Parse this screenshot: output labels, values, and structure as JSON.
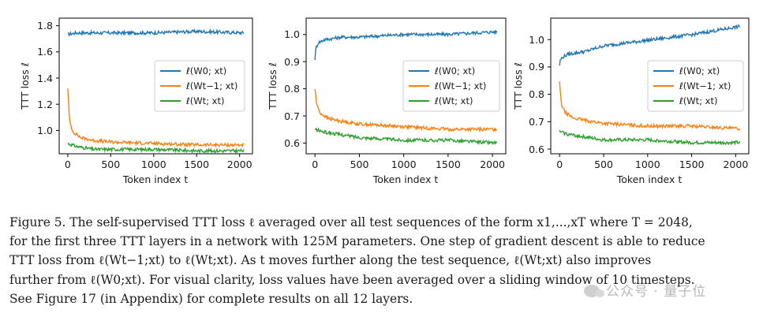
{
  "figure": {
    "subplots": [
      {
        "id": "layer1",
        "xlabel": "Token index t",
        "ylabel": "TTT loss ℓ",
        "yticks": [
          "1.0",
          "1.2",
          "1.4",
          "1.6",
          "1.8"
        ],
        "xticks": [
          "0",
          "500",
          "1000",
          "1500",
          "2000"
        ],
        "legend": [
          "ℓ(W0; xt)",
          "ℓ(Wt−1; xt)",
          "ℓ(Wt; xt)"
        ]
      },
      {
        "id": "layer2",
        "xlabel": "Token index t",
        "ylabel": "TTT loss ℓ",
        "yticks": [
          "0.6",
          "0.7",
          "0.8",
          "0.9",
          "1.0"
        ],
        "xticks": [
          "0",
          "500",
          "1000",
          "1500",
          "2000"
        ],
        "legend": [
          "ℓ(W0; xt)",
          "ℓ(Wt−1; xt)",
          "ℓ(Wt; xt)"
        ]
      },
      {
        "id": "layer3",
        "xlabel": "Token index t",
        "ylabel": "TTT loss ℓ",
        "yticks": [
          "0.6",
          "0.7",
          "0.8",
          "0.9",
          "1.0"
        ],
        "xticks": [
          "0",
          "500",
          "1000",
          "1500",
          "2000"
        ],
        "legend": [
          "ℓ(W0; xt)",
          "ℓ(Wt−1; xt)",
          "ℓ(Wt; xt)"
        ]
      }
    ]
  },
  "chart_data": [
    {
      "type": "line",
      "xlim": [
        -100,
        2150
      ],
      "ylim": [
        0.9,
        1.82
      ],
      "grid": false,
      "legend_position": "center-right",
      "xlabel": "Token index t",
      "ylabel": "TTT loss ℓ",
      "series": [
        {
          "name": "ℓ(W0; xt)",
          "color": "#1f77b4",
          "x": [
            0,
            100,
            500,
            1000,
            1500,
            2048
          ],
          "y": [
            1.71,
            1.72,
            1.72,
            1.72,
            1.73,
            1.72
          ]
        },
        {
          "name": "ℓ(Wt−1; xt)",
          "color": "#ff7f0e",
          "x": [
            0,
            20,
            60,
            150,
            300,
            500,
            1000,
            1500,
            2048
          ],
          "y": [
            1.35,
            1.12,
            1.05,
            1.01,
            0.99,
            0.98,
            0.97,
            0.96,
            0.96
          ]
        },
        {
          "name": "ℓ(Wt; xt)",
          "color": "#2ca02c",
          "x": [
            0,
            100,
            300,
            500,
            1000,
            1500,
            2048
          ],
          "y": [
            0.97,
            0.95,
            0.93,
            0.93,
            0.93,
            0.92,
            0.92
          ]
        }
      ]
    },
    {
      "type": "line",
      "xlim": [
        -100,
        2150
      ],
      "ylim": [
        0.56,
        1.06
      ],
      "grid": false,
      "legend_position": "center-right",
      "xlabel": "Token index t",
      "ylabel": "TTT loss ℓ",
      "series": [
        {
          "name": "ℓ(W0; xt)",
          "color": "#1f77b4",
          "x": [
            0,
            10,
            40,
            100,
            300,
            500,
            1000,
            1500,
            2048
          ],
          "y": [
            0.91,
            0.95,
            0.97,
            0.98,
            0.99,
            0.99,
            1.0,
            1.0,
            1.01
          ]
        },
        {
          "name": "ℓ(Wt−1; xt)",
          "color": "#ff7f0e",
          "x": [
            0,
            20,
            60,
            150,
            300,
            500,
            1000,
            1500,
            2048
          ],
          "y": [
            0.8,
            0.74,
            0.71,
            0.69,
            0.68,
            0.67,
            0.66,
            0.65,
            0.65
          ]
        },
        {
          "name": "ℓ(Wt; xt)",
          "color": "#2ca02c",
          "x": [
            0,
            100,
            300,
            500,
            1000,
            1500,
            2048
          ],
          "y": [
            0.65,
            0.64,
            0.63,
            0.62,
            0.61,
            0.61,
            0.6
          ]
        }
      ]
    },
    {
      "type": "line",
      "xlim": [
        -100,
        2150
      ],
      "ylim": [
        0.58,
        1.07
      ],
      "grid": false,
      "legend_position": "center-right",
      "xlabel": "Token index t",
      "ylabel": "TTT loss ℓ",
      "series": [
        {
          "name": "ℓ(W0; xt)",
          "color": "#1f77b4",
          "x": [
            0,
            10,
            40,
            100,
            300,
            500,
            1000,
            1500,
            2048
          ],
          "y": [
            0.9,
            0.92,
            0.93,
            0.94,
            0.95,
            0.97,
            0.99,
            1.01,
            1.04
          ]
        },
        {
          "name": "ℓ(Wt−1; xt)",
          "color": "#ff7f0e",
          "x": [
            0,
            20,
            60,
            150,
            300,
            500,
            1000,
            1500,
            2048
          ],
          "y": [
            0.84,
            0.76,
            0.73,
            0.71,
            0.7,
            0.69,
            0.68,
            0.68,
            0.67
          ]
        },
        {
          "name": "ℓ(Wt; xt)",
          "color": "#2ca02c",
          "x": [
            0,
            100,
            300,
            500,
            1000,
            1500,
            2048
          ],
          "y": [
            0.66,
            0.65,
            0.64,
            0.63,
            0.63,
            0.62,
            0.62
          ]
        }
      ]
    }
  ],
  "caption": {
    "lines": [
      "Figure 5. The self-supervised TTT loss ℓ averaged over all test sequences of the form x1,...,xT where T = 2048,",
      "for the first three TTT layers in a network with 125M parameters. One step of gradient descent is able to reduce",
      "TTT loss from ℓ(Wt−1;xt) to ℓ(Wt;xt). As t moves further along the test sequence, ℓ(Wt;xt) also improves",
      "further from ℓ(W0;xt). For visual clarity, loss values have been averaged over a sliding window of 10 timesteps.",
      "See Figure 17 (in Appendix) for complete results on all 12 layers."
    ]
  },
  "watermark": {
    "text": "公众号 · 量子位"
  }
}
